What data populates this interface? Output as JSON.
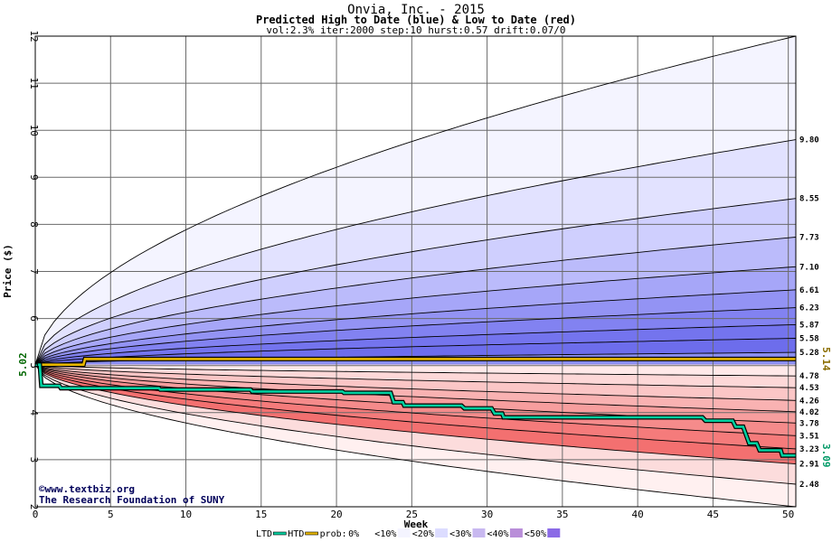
{
  "chart_data": {
    "type": "area",
    "title": "Onvia, Inc. - 2015",
    "subtitle": "Predicted High to Date (blue) &  Low to Date (red)",
    "params": "vol:2.3% iter:2000 step:10 hurst:0.57 drift:0.07/0",
    "xlabel": "Week",
    "ylabel": "Price ($)",
    "xlim": [
      0,
      50.5
    ],
    "ylim": [
      2,
      12
    ],
    "x_ticks": [
      0,
      5,
      10,
      15,
      20,
      25,
      30,
      35,
      40,
      45,
      50
    ],
    "y_ticks": [
      2,
      3,
      4,
      5,
      6,
      7,
      8,
      9,
      10,
      11,
      12
    ],
    "grid": true,
    "start_value_label": "5.02",
    "start_value": 5.02,
    "final_htd_label": "5.14",
    "final_htd": 5.14,
    "final_ltd_label": "3.09",
    "final_ltd": 3.09,
    "upper_curves": [
      {
        "end": 12.0,
        "label": ""
      },
      {
        "end": 9.8,
        "label": "9.80"
      },
      {
        "end": 8.55,
        "label": "8.55"
      },
      {
        "end": 7.73,
        "label": "7.73"
      },
      {
        "end": 7.1,
        "label": "7.10"
      },
      {
        "end": 6.61,
        "label": "6.61"
      },
      {
        "end": 6.23,
        "label": "6.23"
      },
      {
        "end": 5.87,
        "label": "5.87"
      },
      {
        "end": 5.58,
        "label": "5.58"
      },
      {
        "end": 5.28,
        "label": "5.28"
      }
    ],
    "lower_curves": [
      {
        "end": 4.78,
        "label": "4.78"
      },
      {
        "end": 4.53,
        "label": "4.53"
      },
      {
        "end": 4.26,
        "label": "4.26"
      },
      {
        "end": 4.02,
        "label": "4.02"
      },
      {
        "end": 3.78,
        "label": "3.78"
      },
      {
        "end": 3.51,
        "label": "3.51"
      },
      {
        "end": 3.23,
        "label": "3.23"
      },
      {
        "end": 2.91,
        "label": "2.91"
      },
      {
        "end": 2.48,
        "label": "2.48"
      },
      {
        "end": 2.0,
        "label": ""
      }
    ],
    "htd_series": {
      "name": "HTD",
      "x": [
        0,
        3.2,
        3.3,
        50.5
      ],
      "y": [
        5.02,
        5.02,
        5.14,
        5.14
      ]
    },
    "ltd_series": {
      "name": "LTD",
      "x": [
        0,
        0.3,
        0.4,
        1.6,
        1.7,
        8.2,
        8.3,
        14.3,
        14.4,
        20.4,
        20.5,
        23.6,
        23.8,
        24.4,
        24.5,
        28.3,
        28.5,
        30.3,
        30.5,
        31.0,
        31.1,
        44.3,
        44.5,
        46.3,
        46.5,
        47.0,
        47.4,
        47.9,
        48.1,
        49.5,
        49.6,
        50.5
      ],
      "y": [
        5.02,
        5.02,
        4.57,
        4.57,
        4.52,
        4.52,
        4.49,
        4.49,
        4.45,
        4.45,
        4.42,
        4.42,
        4.22,
        4.22,
        4.15,
        4.15,
        4.09,
        4.09,
        3.98,
        3.98,
        3.9,
        3.9,
        3.83,
        3.83,
        3.7,
        3.7,
        3.35,
        3.35,
        3.2,
        3.2,
        3.09,
        3.09
      ]
    },
    "colors": {
      "htd": "#e8b800",
      "ltd": "#00d0a0",
      "htd_label": "#8a6d00",
      "ltd_label": "#009966",
      "start_label": "#006600",
      "upper_bands": [
        "#f4f4ff",
        "#e2e2ff",
        "#cfcffe",
        "#bbbbfb",
        "#a6a6f8",
        "#9393f4",
        "#8282f1",
        "#7474ee",
        "#6d6dec",
        "#8a8ef0"
      ],
      "lower_bands": [
        "#ffe9e9",
        "#fdd8d8",
        "#fbc6c6",
        "#f9b2b2",
        "#f79e9e",
        "#f58b8b",
        "#f57b7b",
        "#f37070",
        "#fcdcdc",
        "#fff0f0"
      ]
    },
    "legend": {
      "ltd": "LTD",
      "htd": "HTD",
      "prob": "prob:",
      "items": [
        {
          "label": "0%",
          "color": "#ffffff"
        },
        {
          "label": "<10%",
          "color": "#f4f4ff"
        },
        {
          "label": "<20%",
          "color": "#dcdcff"
        },
        {
          "label": "<30%",
          "color": "#c8b8f0"
        },
        {
          "label": "<40%",
          "color": "#b98ed9"
        },
        {
          "label": "<50%",
          "color": "#8a6ae6"
        }
      ]
    },
    "watermark_line1": "www.textbiz.org",
    "watermark_line2": "The Research Foundation of SUNY"
  }
}
